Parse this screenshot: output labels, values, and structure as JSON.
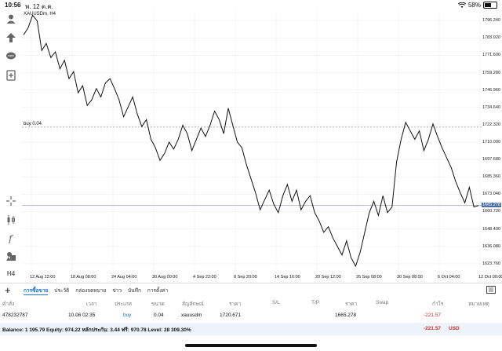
{
  "status_bar": {
    "time": "10:56",
    "date": "พ. 12 ต.ค.",
    "battery": "58%",
    "battery_level": 0.58
  },
  "chart": {
    "symbol": "XAUUSDm, H4",
    "buy_line_label": "buy 0.04",
    "current_price": "1665.278",
    "price_labels": [
      "1796.240",
      "1783.920",
      "1771.600",
      "1759.280",
      "1746.960",
      "1734.640",
      "1722.320",
      "1710.000",
      "1697.680",
      "1685.360",
      "1673.040",
      "1660.720",
      "1648.400",
      "1636.080",
      "1623.760"
    ],
    "time_labels": [
      "12 Aug 12:00",
      "18 Aug 08:00",
      "24 Aug 04:00",
      "30 Aug 00:00",
      "4 Sep 22:00",
      "8 Sep 20:00",
      "14 Sep 16:00",
      "20 Sep 12:00",
      "26 Sep 08:00",
      "30 Sep 08:00",
      "6 Oct 04:00",
      "12 Oct 00:00"
    ]
  },
  "chart_data": {
    "type": "line",
    "title": "XAUUSDm, H4",
    "ylim": [
      1617,
      1803
    ],
    "x": [
      0,
      1,
      2,
      3,
      4,
      5,
      6,
      7,
      8,
      9,
      10,
      11,
      12,
      13,
      14,
      15,
      16,
      17,
      18,
      19,
      20,
      21,
      22,
      23,
      24,
      25,
      26,
      27,
      28,
      29,
      30,
      31,
      32,
      33,
      34,
      35,
      36,
      37,
      38,
      39,
      40,
      41,
      42,
      43,
      44,
      45,
      46,
      47,
      48,
      49,
      50,
      51,
      52,
      53,
      54,
      55,
      56,
      57,
      58,
      59,
      60,
      61,
      62,
      63,
      64,
      65,
      66,
      67,
      68,
      69,
      70,
      71,
      72,
      73,
      74,
      75,
      76,
      77,
      78,
      79,
      80,
      81,
      82,
      83,
      84,
      85,
      86,
      87,
      88,
      89,
      90,
      91,
      92,
      93,
      94,
      95,
      96,
      97,
      98,
      99,
      100
    ],
    "values": [
      1786,
      1791,
      1800,
      1796,
      1775,
      1780,
      1770,
      1774,
      1762,
      1768,
      1755,
      1760,
      1745,
      1750,
      1736,
      1740,
      1748,
      1742,
      1752,
      1755,
      1748,
      1740,
      1728,
      1735,
      1742,
      1730,
      1721,
      1726,
      1712,
      1706,
      1697,
      1702,
      1710,
      1705,
      1712,
      1722,
      1716,
      1704,
      1712,
      1720,
      1714,
      1722,
      1732,
      1726,
      1716,
      1734,
      1722,
      1710,
      1706,
      1694,
      1684,
      1674,
      1662,
      1669,
      1676,
      1666,
      1660,
      1672,
      1680,
      1668,
      1676,
      1662,
      1668,
      1672,
      1660,
      1654,
      1646,
      1650,
      1642,
      1636,
      1630,
      1640,
      1628,
      1622,
      1632,
      1646,
      1660,
      1668,
      1658,
      1672,
      1660,
      1664,
      1696,
      1712,
      1724,
      1718,
      1712,
      1718,
      1704,
      1712,
      1723,
      1714,
      1706,
      1699,
      1692,
      1682,
      1674,
      1667,
      1678,
      1664,
      1665
    ],
    "buy_level": 1720.671,
    "current_level": 1665.278,
    "xlabel": "",
    "ylabel": ""
  },
  "tabs": [
    "การซื้อขาย",
    "ประวัติ",
    "กล่องจดหมาย",
    "ข่าว",
    "บันทึก",
    "การตั้งค่า"
  ],
  "table": {
    "headers": [
      "คำสั่ง",
      "เวลา",
      "ประเภท",
      "ขนาด",
      "สัญลักษณ์",
      "ราคา",
      "S/L",
      "T/P",
      "ราคา",
      "Swap",
      "กำไร",
      "หมายเหตุ"
    ],
    "row": {
      "order": "478232787",
      "time": "10.06 02:35",
      "type": "buy",
      "size": "0.04",
      "symbol": "xauusdm",
      "open_price": "1720.671",
      "sl": "",
      "tp": "",
      "price": "1665.278",
      "swap": "",
      "profit": "-221.57",
      "comment": ""
    }
  },
  "balance": {
    "text": "Balance: 1 195.79 Equity: 974.22 หลักประกัน: 3.44 ฟรี: 970.78 Level: 28 309.30%",
    "total": "-221.57",
    "currency": "USD"
  },
  "colors": {
    "accent": "#1a73d9",
    "negative": "#d93025",
    "price_tag": "#4a6fa5"
  }
}
